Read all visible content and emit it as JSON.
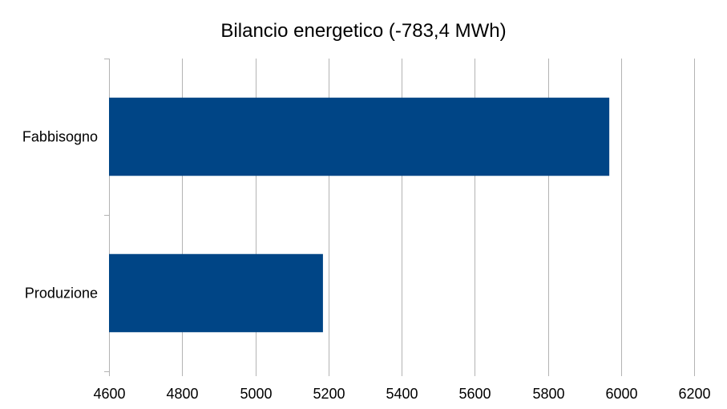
{
  "chart_data": {
    "type": "bar",
    "orientation": "horizontal",
    "title": "Bilancio energetico (-783,4 MWh)",
    "categories": [
      "Fabbisogno",
      "Produzione"
    ],
    "values": [
      5968,
      5185
    ],
    "xlim": [
      4600,
      6200
    ],
    "xticks": [
      "4600",
      "4800",
      "5000",
      "5200",
      "5400",
      "5600",
      "5800",
      "6000",
      "6200"
    ],
    "xlabel": "",
    "ylabel": "",
    "grid": true,
    "legend": "none",
    "colors": {
      "bar": "#004586",
      "grid": "#b3b3b3",
      "axis": "#b3b3b3"
    }
  }
}
